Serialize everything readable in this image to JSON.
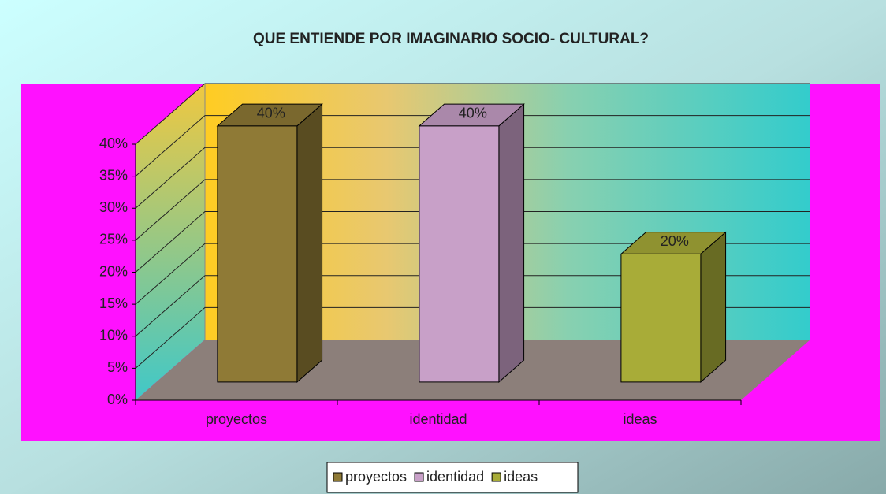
{
  "chart_data": {
    "type": "bar3d",
    "title": "QUE ENTIENDE POR IMAGINARIO SOCIO- CULTURAL?",
    "categories": [
      "proyectos",
      "identidad",
      "ideas"
    ],
    "values": [
      40,
      40,
      20
    ],
    "value_labels": [
      "40%",
      "40%",
      "20%"
    ],
    "colors": [
      "#8f7a36",
      "#c8a0c8",
      "#a8ac38"
    ],
    "ylim": [
      0,
      40
    ],
    "yticks": [
      {
        "value": 0,
        "label": "0%"
      },
      {
        "value": 5,
        "label": "5%"
      },
      {
        "value": 10,
        "label": "10%"
      },
      {
        "value": 15,
        "label": "15%"
      },
      {
        "value": 20,
        "label": "20%"
      },
      {
        "value": 25,
        "label": "25%"
      },
      {
        "value": 30,
        "label": "30%"
      },
      {
        "value": 35,
        "label": "35%"
      },
      {
        "value": 40,
        "label": "40%"
      }
    ],
    "grid": true,
    "legend": "bottom"
  }
}
